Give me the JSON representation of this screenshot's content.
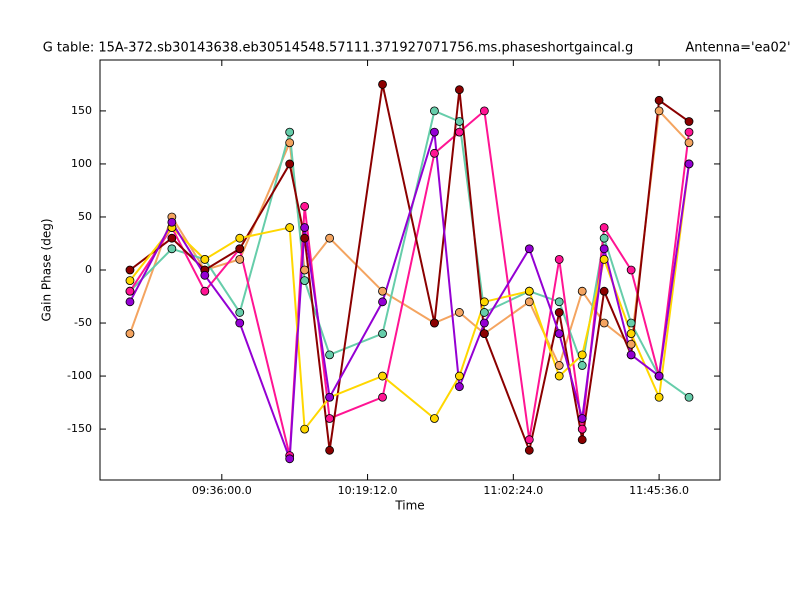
{
  "chart_data": {
    "type": "line",
    "title": "G table: 15A-372.sb30143638.eb30514548.57111.371927071756.ms.phaseshortgaincal.g",
    "annotation": "Antenna='ea02'",
    "x_label": "Time",
    "y_label": "Gain Phase (deg)",
    "x": [
      32927,
      33672,
      34258,
      34879,
      35767,
      36033,
      36477,
      37418,
      38341,
      38785,
      39229,
      40028,
      40560,
      40969,
      41359,
      41839,
      42336,
      42868
    ],
    "series": [
      {
        "color": "#f4a460",
        "values": [
          -60,
          50,
          0,
          10,
          120,
          0,
          30,
          -20,
          -50,
          -40,
          -60,
          -30,
          -90,
          -20,
          -50,
          -70,
          150,
          120
        ]
      },
      {
        "color": "#66cdaa",
        "values": [
          -20,
          20,
          10,
          -40,
          130,
          -10,
          -80,
          -60,
          150,
          140,
          -40,
          -20,
          -30,
          -90,
          30,
          -50,
          -100,
          -120
        ]
      },
      {
        "color": "#ff1493",
        "values": [
          -20,
          40,
          -20,
          20,
          -175,
          60,
          -140,
          -120,
          110,
          130,
          150,
          -160,
          10,
          -150,
          40,
          0,
          -100,
          130
        ]
      },
      {
        "color": "#8b0000",
        "values": [
          0,
          30,
          0,
          20,
          100,
          30,
          -170,
          175,
          -50,
          170,
          -60,
          -170,
          -40,
          -160,
          -20,
          -80,
          160,
          140
        ]
      },
      {
        "color": "#ffd700",
        "values": [
          -10,
          40,
          10,
          30,
          40,
          -150,
          -120,
          -100,
          -140,
          -100,
          -30,
          -20,
          -100,
          -80,
          10,
          -60,
          -120,
          100
        ]
      },
      {
        "color": "#9400d3",
        "values": [
          -30,
          45,
          -5,
          -50,
          -178,
          40,
          -120,
          -30,
          130,
          -110,
          -50,
          20,
          -60,
          -140,
          20,
          -80,
          -100,
          100
        ]
      }
    ],
    "xlim": [
      32394,
      43419
    ],
    "xticks": [
      {
        "value": 34560,
        "label": "09:36:00.0"
      },
      {
        "value": 37152,
        "label": "10:19:12.0"
      },
      {
        "value": 39744,
        "label": "11:02:24.0"
      },
      {
        "value": 42336,
        "label": "11:45:36.0"
      }
    ],
    "ylim": [
      -198,
      198
    ],
    "yticks": [
      -150,
      -100,
      -50,
      0,
      50,
      100,
      150
    ]
  }
}
